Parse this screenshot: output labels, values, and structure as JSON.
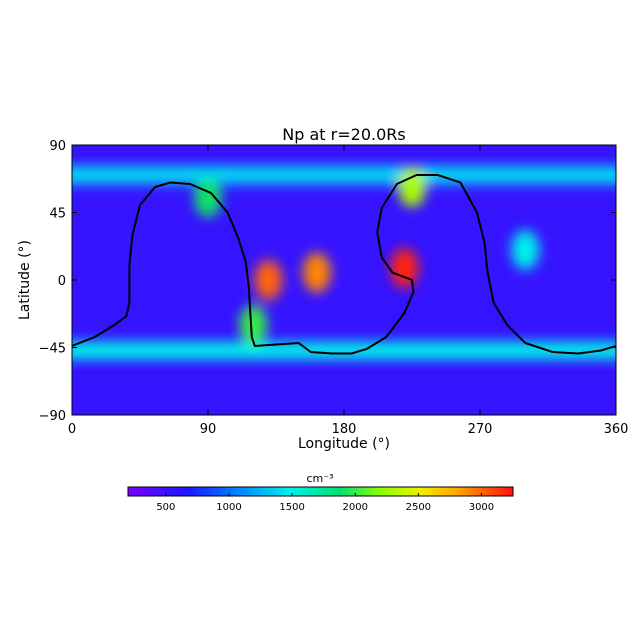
{
  "chart_data": {
    "type": "heatmap",
    "title": "Np at r=20.0Rs",
    "xlabel": "Longitude (°)",
    "ylabel": "Latitude (°)",
    "xlim": [
      0,
      360
    ],
    "ylim": [
      -90,
      90
    ],
    "x_ticks": [
      "0",
      "90",
      "180",
      "270",
      "360"
    ],
    "y_ticks": [
      "90",
      "45",
      "0",
      "−45",
      "−90"
    ],
    "colorbar": {
      "label": "cm⁻³",
      "range": [
        200,
        3250
      ],
      "ticks": [
        "500",
        "1000",
        "1500",
        "2000",
        "2500",
        "3000"
      ],
      "colormap": "rainbow"
    },
    "background_value": 550,
    "features": [
      {
        "kind": "band",
        "lat": 70,
        "value": 1400
      },
      {
        "kind": "band",
        "lat": -47,
        "value": 1500
      },
      {
        "kind": "blob",
        "lon": 90,
        "lat": 55,
        "value": 1900
      },
      {
        "kind": "blob",
        "lon": 130,
        "lat": 0,
        "value": 3000
      },
      {
        "kind": "blob",
        "lon": 162,
        "lat": 5,
        "value": 2900
      },
      {
        "kind": "blob",
        "lon": 225,
        "lat": 62,
        "value": 2300
      },
      {
        "kind": "blob",
        "lon": 220,
        "lat": 8,
        "value": 3200
      },
      {
        "kind": "blob",
        "lon": 300,
        "lat": 20,
        "value": 1500
      },
      {
        "kind": "blob",
        "lon": 120,
        "lat": -30,
        "value": 2000
      }
    ],
    "neutral_line": [
      [
        0,
        -44
      ],
      [
        15,
        -38
      ],
      [
        28,
        -30
      ],
      [
        36,
        -24
      ],
      [
        38,
        -15
      ],
      [
        38,
        10
      ],
      [
        40,
        30
      ],
      [
        45,
        50
      ],
      [
        55,
        62
      ],
      [
        65,
        65
      ],
      [
        78,
        64
      ],
      [
        92,
        58
      ],
      [
        103,
        45
      ],
      [
        110,
        28
      ],
      [
        115,
        12
      ],
      [
        117,
        -5
      ],
      [
        118,
        -22
      ],
      [
        119,
        -38
      ],
      [
        121,
        -44
      ],
      [
        135,
        -43
      ],
      [
        150,
        -42
      ],
      [
        158,
        -48
      ],
      [
        172,
        -49
      ],
      [
        185,
        -49
      ],
      [
        195,
        -46
      ],
      [
        208,
        -38
      ],
      [
        220,
        -22
      ],
      [
        226,
        -8
      ],
      [
        225,
        0
      ],
      [
        212,
        5
      ],
      [
        205,
        15
      ],
      [
        202,
        32
      ],
      [
        205,
        48
      ],
      [
        215,
        64
      ],
      [
        228,
        70
      ],
      [
        242,
        70
      ],
      [
        257,
        65
      ],
      [
        268,
        45
      ],
      [
        273,
        25
      ],
      [
        275,
        5
      ],
      [
        279,
        -15
      ],
      [
        288,
        -30
      ],
      [
        300,
        -42
      ],
      [
        318,
        -48
      ],
      [
        335,
        -49
      ],
      [
        350,
        -47
      ],
      [
        360,
        -44
      ]
    ]
  }
}
